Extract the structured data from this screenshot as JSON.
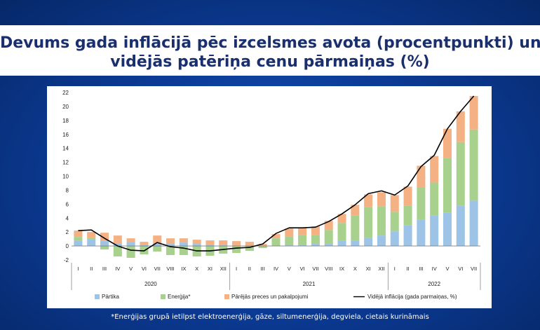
{
  "title": {
    "line1": "Devums gada inflācijā pēc izcelsmes avota (procentpunkti) un",
    "line2": "vidējās patēriņa cenu pārmaiņas (%)"
  },
  "footnote": "*Enerģijas grupā ietilpst elektroenerģija, gāze, siltumenerģija, degviela, cietais kurināmais",
  "colors": {
    "food": "#9dc3e6",
    "energy": "#a9d18e",
    "other": "#f4b183",
    "line": "#000000"
  },
  "chart_data": {
    "type": "bar",
    "stacked": true,
    "ylim": [
      -2,
      22
    ],
    "yticks": [
      -2,
      0,
      2,
      4,
      6,
      8,
      10,
      12,
      14,
      16,
      18,
      20,
      22
    ],
    "categories": [
      "I",
      "II",
      "III",
      "IV",
      "V",
      "VI",
      "VII",
      "VIII",
      "IX",
      "X",
      "XI",
      "XII",
      "I",
      "II",
      "III",
      "IV",
      "V",
      "VI",
      "VII",
      "VIII",
      "IX",
      "X",
      "XI",
      "XII",
      "I",
      "II",
      "III",
      "IV",
      "V",
      "VI",
      "VII"
    ],
    "years": [
      {
        "label": "2020",
        "start": 0,
        "end": 11
      },
      {
        "label": "2021",
        "start": 12,
        "end": 23
      },
      {
        "label": "2022",
        "start": 24,
        "end": 30
      }
    ],
    "series": [
      {
        "name": "Pārtika",
        "key": "food",
        "values": [
          0.8,
          1.0,
          0.7,
          0.4,
          0.6,
          0.2,
          0.3,
          0.3,
          0.5,
          0.3,
          0.2,
          0.1,
          0.0,
          -0.1,
          0.0,
          0.0,
          0.1,
          0.2,
          0.3,
          0.3,
          0.8,
          0.8,
          1.2,
          1.5,
          2.1,
          3.0,
          3.8,
          4.4,
          4.8,
          5.8,
          6.5
        ]
      },
      {
        "name": "Enerģija*",
        "key": "energy",
        "values": [
          0.5,
          0.2,
          -0.5,
          -1.5,
          -1.7,
          -1.2,
          -0.8,
          -1.3,
          -1.3,
          -1.5,
          -1.4,
          -1.1,
          -1.0,
          -0.6,
          -0.3,
          1.1,
          1.3,
          1.4,
          1.3,
          2.0,
          2.5,
          3.6,
          4.4,
          4.2,
          2.8,
          2.8,
          4.6,
          4.7,
          7.8,
          9.1,
          10.2
        ]
      },
      {
        "name": "Pārējās preces un pakalpojumi",
        "key": "other",
        "values": [
          0.9,
          0.8,
          1.2,
          1.1,
          0.5,
          0.4,
          1.2,
          0.8,
          0.6,
          0.6,
          0.6,
          0.7,
          0.7,
          0.6,
          0.3,
          0.6,
          1.1,
          1.0,
          1.2,
          1.3,
          1.3,
          1.5,
          1.8,
          2.0,
          2.4,
          2.7,
          3.1,
          3.8,
          4.2,
          4.4,
          4.8
        ]
      }
    ],
    "line": {
      "name": "Vidējā inflācija (gada parmaiņas, %)",
      "values": [
        2.2,
        2.3,
        1.1,
        0.0,
        -0.6,
        -0.7,
        0.5,
        -0.1,
        -0.3,
        -0.7,
        -0.7,
        -0.5,
        -0.3,
        -0.2,
        0.3,
        1.8,
        2.6,
        2.6,
        2.7,
        3.5,
        4.6,
        5.9,
        7.5,
        7.9,
        7.3,
        8.6,
        11.4,
        13.0,
        16.8,
        19.3,
        21.5
      ]
    },
    "grid": false,
    "legend_position": "bottom"
  }
}
